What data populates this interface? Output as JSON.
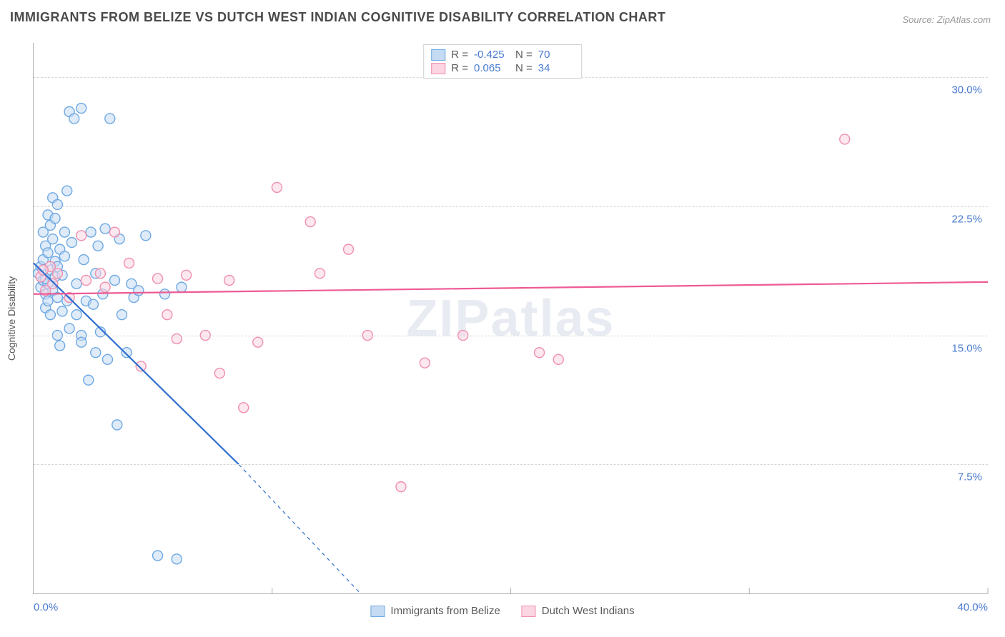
{
  "title": "IMMIGRANTS FROM BELIZE VS DUTCH WEST INDIAN COGNITIVE DISABILITY CORRELATION CHART",
  "source": "Source: ZipAtlas.com",
  "watermark": "ZIPatlas",
  "y_axis_label": "Cognitive Disability",
  "chart": {
    "type": "scatter",
    "xlim": [
      0,
      40
    ],
    "ylim": [
      0,
      32
    ],
    "x_ticks": [
      0,
      10,
      20,
      30,
      40
    ],
    "x_tick_labels": [
      "0.0%",
      "",
      "",
      "",
      "40.0%"
    ],
    "y_ticks": [
      7.5,
      15.0,
      22.5,
      30.0
    ],
    "y_tick_labels": [
      "7.5%",
      "15.0%",
      "22.5%",
      "30.0%"
    ],
    "grid_color": "#d6d6d6",
    "background_color": "#ffffff",
    "axis_color": "#b0b0b0",
    "marker_radius": 7,
    "marker_stroke_width": 1.4,
    "trend_line_width": 2.2
  },
  "series": [
    {
      "name": "Immigrants from Belize",
      "label": "Immigrants from Belize",
      "fill": "#c4dbf3",
      "stroke": "#6ea9e4",
      "line_color": "#2f6fd0",
      "R": "-0.425",
      "N": "70",
      "trend": {
        "x1": 0,
        "y1": 19.2,
        "x2": 8.6,
        "y2": 7.5,
        "dash_to_x": 13.7,
        "dash_to_y": 0
      },
      "points": [
        [
          0.2,
          18.6
        ],
        [
          0.3,
          19.0
        ],
        [
          0.3,
          17.8
        ],
        [
          0.4,
          18.2
        ],
        [
          0.4,
          19.4
        ],
        [
          0.5,
          17.4
        ],
        [
          0.5,
          20.2
        ],
        [
          0.5,
          16.6
        ],
        [
          0.6,
          18.0
        ],
        [
          0.6,
          19.8
        ],
        [
          0.6,
          17.0
        ],
        [
          0.6,
          22.0
        ],
        [
          0.7,
          18.8
        ],
        [
          0.7,
          21.4
        ],
        [
          0.7,
          16.2
        ],
        [
          0.8,
          20.6
        ],
        [
          0.8,
          23.0
        ],
        [
          0.8,
          17.6
        ],
        [
          0.9,
          19.3
        ],
        [
          0.9,
          18.4
        ],
        [
          0.9,
          21.8
        ],
        [
          1.0,
          15.0
        ],
        [
          1.0,
          22.6
        ],
        [
          1.0,
          17.2
        ],
        [
          1.1,
          20.0
        ],
        [
          1.1,
          14.4
        ],
        [
          1.2,
          18.5
        ],
        [
          1.2,
          16.4
        ],
        [
          1.3,
          19.6
        ],
        [
          1.3,
          21.0
        ],
        [
          1.4,
          17.0
        ],
        [
          1.4,
          23.4
        ],
        [
          1.5,
          15.4
        ],
        [
          1.5,
          28.0
        ],
        [
          1.6,
          20.4
        ],
        [
          1.7,
          27.6
        ],
        [
          1.8,
          16.2
        ],
        [
          1.8,
          18.0
        ],
        [
          2.0,
          15.0
        ],
        [
          2.0,
          14.6
        ],
        [
          2.0,
          28.2
        ],
        [
          2.1,
          19.4
        ],
        [
          2.2,
          17.0
        ],
        [
          2.3,
          12.4
        ],
        [
          2.4,
          21.0
        ],
        [
          2.5,
          16.8
        ],
        [
          2.6,
          18.6
        ],
        [
          2.6,
          14.0
        ],
        [
          2.7,
          20.2
        ],
        [
          2.8,
          15.2
        ],
        [
          2.9,
          17.4
        ],
        [
          3.0,
          21.2
        ],
        [
          3.1,
          13.6
        ],
        [
          3.2,
          27.6
        ],
        [
          3.4,
          18.2
        ],
        [
          3.5,
          9.8
        ],
        [
          3.6,
          20.6
        ],
        [
          3.7,
          16.2
        ],
        [
          3.9,
          14.0
        ],
        [
          4.1,
          18.0
        ],
        [
          4.2,
          17.2
        ],
        [
          4.4,
          17.6
        ],
        [
          4.7,
          20.8
        ],
        [
          5.2,
          2.2
        ],
        [
          5.5,
          17.4
        ],
        [
          6.0,
          2.0
        ],
        [
          6.2,
          17.8
        ],
        [
          0.5,
          18.3
        ],
        [
          0.4,
          21.0
        ],
        [
          1.0,
          19.0
        ]
      ]
    },
    {
      "name": "Dutch West Indians",
      "label": "Dutch West Indians",
      "fill": "#fbd5e1",
      "stroke": "#f08fb0",
      "line_color": "#ee5a94",
      "R": "0.065",
      "N": "34",
      "trend": {
        "x1": 0,
        "y1": 17.4,
        "x2": 40,
        "y2": 18.1
      },
      "points": [
        [
          0.3,
          18.4
        ],
        [
          0.5,
          17.6
        ],
        [
          0.7,
          19.0
        ],
        [
          0.8,
          18.0
        ],
        [
          1.0,
          18.6
        ],
        [
          1.5,
          17.2
        ],
        [
          2.0,
          20.8
        ],
        [
          2.2,
          18.2
        ],
        [
          2.8,
          18.6
        ],
        [
          3.0,
          17.8
        ],
        [
          3.4,
          21.0
        ],
        [
          4.0,
          19.2
        ],
        [
          4.5,
          13.2
        ],
        [
          5.2,
          18.3
        ],
        [
          5.6,
          16.2
        ],
        [
          6.0,
          14.8
        ],
        [
          6.4,
          18.5
        ],
        [
          7.2,
          15.0
        ],
        [
          7.8,
          12.8
        ],
        [
          8.2,
          18.2
        ],
        [
          8.8,
          10.8
        ],
        [
          9.4,
          14.6
        ],
        [
          10.2,
          23.6
        ],
        [
          11.6,
          21.6
        ],
        [
          12.0,
          18.6
        ],
        [
          13.2,
          20.0
        ],
        [
          14.0,
          15.0
        ],
        [
          15.4,
          6.2
        ],
        [
          16.4,
          13.4
        ],
        [
          18.0,
          15.0
        ],
        [
          21.2,
          14.0
        ],
        [
          22.0,
          13.6
        ],
        [
          34.0,
          26.4
        ],
        [
          0.4,
          18.8
        ]
      ]
    }
  ],
  "stats_legend": {
    "r_label": "R =",
    "n_label": "N ="
  },
  "tick_label_color": "#4a7bd0",
  "label_fontsize": 14,
  "tick_fontsize": 15
}
